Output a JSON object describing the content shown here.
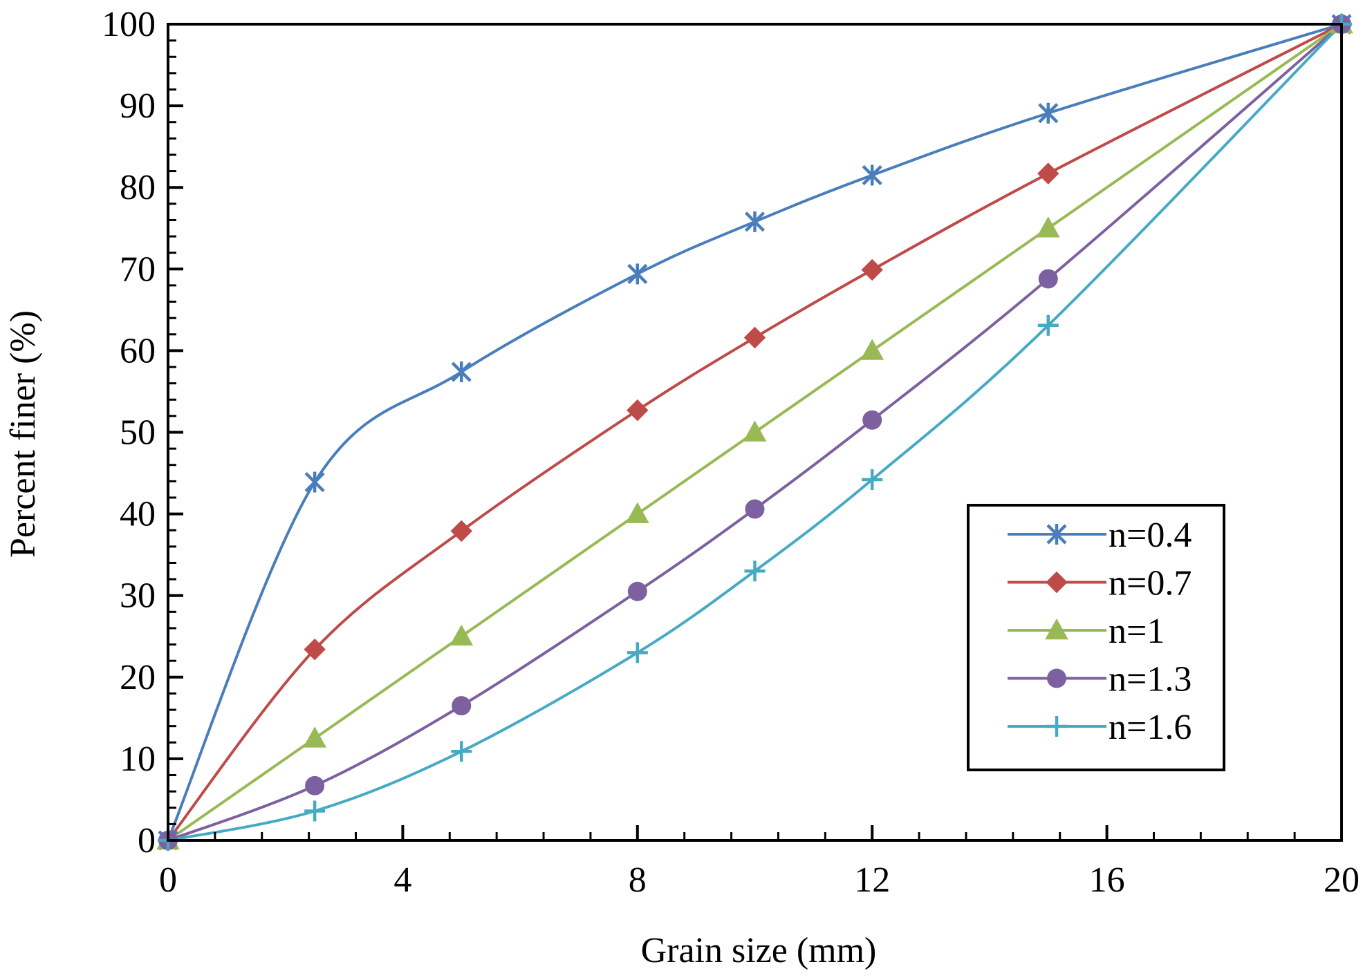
{
  "chart_data": {
    "type": "line",
    "title": "",
    "xlabel": "Grain size (mm)",
    "ylabel": "Percent finer (%)",
    "xlim": [
      0,
      20
    ],
    "ylim": [
      0,
      100
    ],
    "xticks": [
      0,
      4,
      8,
      12,
      16,
      20
    ],
    "yticks": [
      0,
      10,
      20,
      30,
      40,
      50,
      60,
      70,
      80,
      90,
      100
    ],
    "x_minor_step": 0.8,
    "y_minor_step": 2,
    "grid": false,
    "legend_position": "lower-right",
    "x": [
      0,
      2.5,
      5,
      8,
      10,
      12,
      15,
      20
    ],
    "series": [
      {
        "name": "n=0.4",
        "marker": "asterisk",
        "color": "#4A7EBB",
        "values": [
          0,
          43.9,
          57.4,
          69.4,
          75.8,
          81.5,
          89.1,
          100
        ]
      },
      {
        "name": "n=0.7",
        "marker": "diamond",
        "color": "#BE4B48",
        "values": [
          0,
          23.4,
          37.9,
          52.7,
          61.6,
          69.9,
          81.7,
          100
        ]
      },
      {
        "name": "n=1",
        "marker": "triangle",
        "color": "#98B954",
        "values": [
          0,
          12.5,
          25,
          40,
          50,
          60,
          75,
          100
        ]
      },
      {
        "name": "n=1.3",
        "marker": "circle",
        "color": "#7D60A0",
        "values": [
          0,
          6.7,
          16.5,
          30.5,
          40.6,
          51.5,
          68.8,
          100
        ]
      },
      {
        "name": "n=1.6",
        "marker": "plus",
        "color": "#46AAC5",
        "values": [
          0,
          3.6,
          10.9,
          23.0,
          33.0,
          44.2,
          63.1,
          100
        ]
      }
    ]
  }
}
